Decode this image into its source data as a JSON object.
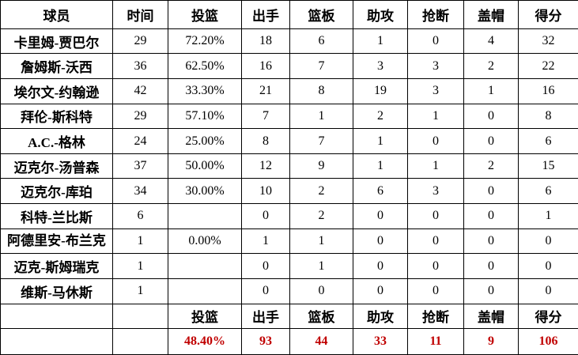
{
  "headers": [
    "球员",
    "时间",
    "投篮",
    "出手",
    "篮板",
    "助攻",
    "抢断",
    "盖帽",
    "得分"
  ],
  "rows": [
    [
      "卡里姆-贾巴尔",
      "29",
      "72.20%",
      "18",
      "6",
      "1",
      "0",
      "4",
      "32"
    ],
    [
      "詹姆斯-沃西",
      "36",
      "62.50%",
      "16",
      "7",
      "3",
      "3",
      "2",
      "22"
    ],
    [
      "埃尔文-约翰逊",
      "42",
      "33.30%",
      "21",
      "8",
      "19",
      "3",
      "1",
      "16"
    ],
    [
      "拜伦-斯科特",
      "29",
      "57.10%",
      "7",
      "1",
      "2",
      "1",
      "0",
      "8"
    ],
    [
      "A.C.-格林",
      "24",
      "25.00%",
      "8",
      "7",
      "1",
      "0",
      "0",
      "6"
    ],
    [
      "迈克尔-汤普森",
      "37",
      "50.00%",
      "12",
      "9",
      "1",
      "1",
      "2",
      "15"
    ],
    [
      "迈克尔-库珀",
      "34",
      "30.00%",
      "10",
      "2",
      "6",
      "3",
      "0",
      "6"
    ],
    [
      "科特-兰比斯",
      "6",
      "",
      "0",
      "2",
      "0",
      "0",
      "0",
      "1"
    ],
    [
      "阿德里安-布兰克",
      "1",
      "0.00%",
      "1",
      "1",
      "0",
      "0",
      "0",
      "0"
    ],
    [
      "迈克-斯姆瑞克",
      "1",
      "",
      "0",
      "1",
      "0",
      "0",
      "0",
      "0"
    ],
    [
      "维斯-马休斯",
      "1",
      "",
      "0",
      "0",
      "0",
      "0",
      "0",
      "0"
    ]
  ],
  "totals_header": [
    "",
    "",
    "投篮",
    "出手",
    "篮板",
    "助攻",
    "抢断",
    "盖帽",
    "得分"
  ],
  "totals": [
    "",
    "",
    "48.40%",
    "93",
    "44",
    "33",
    "11",
    "9",
    "106"
  ],
  "colors": {
    "totals": "#c00000",
    "border": "#000000"
  }
}
